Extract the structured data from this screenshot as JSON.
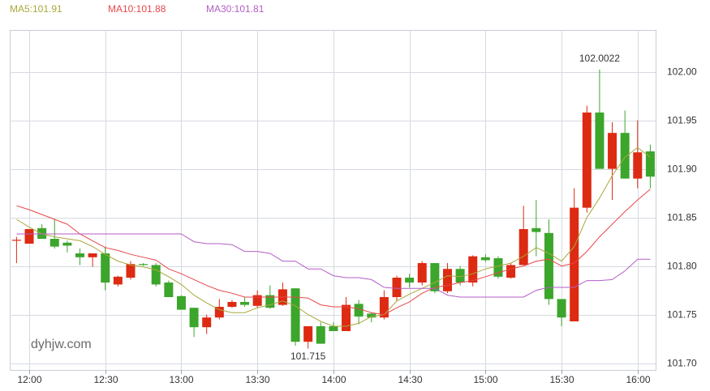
{
  "chart_data": {
    "type": "candlestick",
    "categories": [
      null,
      "12:00",
      null,
      null,
      null,
      null,
      null,
      "12:30",
      null,
      null,
      null,
      null,
      null,
      "13:00",
      null,
      null,
      null,
      null,
      null,
      "13:30",
      null,
      null,
      null,
      null,
      null,
      "14:00",
      null,
      null,
      null,
      null,
      null,
      "14:30",
      null,
      null,
      null,
      null,
      null,
      "15:00",
      null,
      null,
      null,
      null,
      null,
      "15:30",
      null,
      null,
      null,
      null,
      null,
      "16:00",
      null
    ],
    "open": [
      101.826,
      101.823,
      101.839,
      101.828,
      101.824,
      101.813,
      101.809,
      101.813,
      101.781,
      101.788,
      101.802,
      101.801,
      101.783,
      101.769,
      101.757,
      101.737,
      101.747,
      101.758,
      101.763,
      101.759,
      101.77,
      101.76,
      101.777,
      101.722,
      101.738,
      101.738,
      101.733,
      101.761,
      101.751,
      101.747,
      101.768,
      101.788,
      101.783,
      101.803,
      101.774,
      101.797,
      101.783,
      101.809,
      101.808,
      101.788,
      101.801,
      101.839,
      101.834,
      101.766,
      101.743,
      101.86,
      101.958,
      101.9,
      101.937,
      101.89,
      101.918
    ],
    "high": [
      101.83,
      101.838,
      101.843,
      101.848,
      101.826,
      101.818,
      101.813,
      101.82,
      101.79,
      101.805,
      101.803,
      101.803,
      101.785,
      101.77,
      101.757,
      101.75,
      101.766,
      101.765,
      101.768,
      101.775,
      101.78,
      101.783,
      101.777,
      101.738,
      101.742,
      101.742,
      101.768,
      101.765,
      101.752,
      101.775,
      101.79,
      101.792,
      101.805,
      101.803,
      101.803,
      101.8,
      101.811,
      101.812,
      101.81,
      101.803,
      101.862,
      101.868,
      101.848,
      101.766,
      101.88,
      101.965,
      102.0022,
      101.948,
      101.96,
      101.95,
      101.925
    ],
    "low": [
      101.803,
      101.823,
      101.828,
      101.818,
      101.814,
      101.801,
      101.799,
      101.775,
      101.779,
      101.786,
      101.8,
      101.779,
      101.768,
      101.755,
      101.727,
      101.73,
      101.745,
      101.757,
      101.758,
      101.757,
      101.756,
      101.759,
      101.718,
      101.715,
      101.72,
      101.733,
      101.733,
      101.74,
      101.742,
      101.745,
      101.764,
      101.778,
      101.78,
      101.772,
      101.772,
      101.78,
      101.779,
      101.804,
      101.787,
      101.787,
      101.801,
      101.81,
      101.76,
      101.738,
      101.743,
      101.855,
      101.9,
      101.868,
      101.89,
      101.88,
      101.88
    ],
    "close": [
      101.827,
      101.838,
      101.828,
      101.82,
      101.821,
      101.809,
      101.813,
      101.783,
      101.789,
      101.802,
      101.801,
      101.781,
      101.768,
      101.755,
      101.737,
      101.747,
      101.758,
      101.763,
      101.76,
      101.77,
      101.757,
      101.776,
      101.722,
      101.738,
      101.72,
      101.733,
      101.76,
      101.748,
      101.747,
      101.768,
      101.788,
      101.783,
      101.803,
      101.774,
      101.797,
      101.783,
      101.81,
      101.806,
      101.789,
      101.801,
      101.838,
      101.835,
      101.766,
      101.747,
      101.86,
      101.958,
      101.9,
      101.937,
      101.89,
      101.917,
      101.892
    ],
    "up_color": "#dd2a12",
    "down_color": "#3ca52c",
    "series": [
      {
        "name": "MA5:101.91",
        "color": "#a9a83a",
        "values": [
          101.848,
          101.84,
          101.833,
          101.83,
          101.828,
          101.826,
          101.82,
          101.812,
          101.805,
          101.801,
          101.799,
          101.796,
          101.789,
          101.781,
          101.77,
          101.762,
          101.755,
          101.752,
          101.752,
          101.757,
          101.76,
          101.764,
          101.759,
          101.75,
          101.743,
          101.738,
          101.738,
          101.741,
          101.748,
          101.75,
          101.764,
          101.771,
          101.777,
          101.783,
          101.79,
          101.789,
          101.792,
          101.797,
          101.8,
          101.803,
          101.81,
          101.819,
          101.813,
          101.805,
          101.82,
          101.85,
          101.87,
          101.893,
          101.912,
          101.922,
          101.912
        ]
      },
      {
        "name": "MA10:101.88",
        "color": "#e8464a",
        "values": [
          101.862,
          101.858,
          101.853,
          101.848,
          101.843,
          101.833,
          101.826,
          101.819,
          101.816,
          101.812,
          101.809,
          101.806,
          101.797,
          101.792,
          101.786,
          101.78,
          101.775,
          101.772,
          101.768,
          101.768,
          101.768,
          101.768,
          101.768,
          101.767,
          101.76,
          101.758,
          101.758,
          101.756,
          101.752,
          101.75,
          101.757,
          101.763,
          101.772,
          101.778,
          101.78,
          101.783,
          101.785,
          101.789,
          101.793,
          101.797,
          101.8,
          101.805,
          101.807,
          101.8,
          101.803,
          101.815,
          101.83,
          101.843,
          101.856,
          101.868,
          101.879
        ]
      },
      {
        "name": "MA30:101.81",
        "color": "#b35ec6",
        "values": [
          101.833,
          101.833,
          101.833,
          101.833,
          101.833,
          101.833,
          101.833,
          101.833,
          101.833,
          101.833,
          101.833,
          101.833,
          101.833,
          101.833,
          101.825,
          101.823,
          101.823,
          101.822,
          101.815,
          101.815,
          101.813,
          101.805,
          101.805,
          101.797,
          101.797,
          101.79,
          101.788,
          101.788,
          101.786,
          101.778,
          101.777,
          101.777,
          101.777,
          101.777,
          101.77,
          101.768,
          101.768,
          101.768,
          101.768,
          101.768,
          101.768,
          101.775,
          101.778,
          101.778,
          101.778,
          101.785,
          101.785,
          101.786,
          101.795,
          101.807,
          101.807
        ]
      }
    ],
    "annotations": [
      102.0022,
      101.715
    ],
    "watermark": "dyhjw.com",
    "ylim": [
      101.693,
      102.043
    ],
    "yticks": [
      {
        "value": 102,
        "label": "102.00"
      },
      101.95,
      {
        "value": 101.9,
        "label": "101.90"
      },
      101.85,
      {
        "value": 101.8,
        "label": "101.80"
      },
      101.75,
      {
        "value": 101.7,
        "label": "101.70"
      }
    ],
    "grid": true
  }
}
